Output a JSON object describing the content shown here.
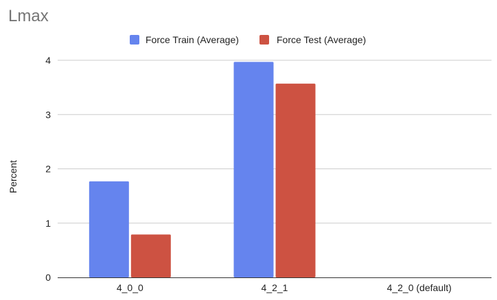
{
  "chart_data": {
    "type": "bar",
    "title": "Lmax",
    "xlabel": "",
    "ylabel": "Percent",
    "categories": [
      "4_0_0",
      "4_2_1",
      "4_2_0 (default)"
    ],
    "series": [
      {
        "name": "Force Train (Average)",
        "color": "#6584ee",
        "values": [
          1.77,
          3.97,
          null
        ]
      },
      {
        "name": "Force Test (Average)",
        "color": "#cd5242",
        "values": [
          0.79,
          3.57,
          null
        ]
      }
    ],
    "ylim": [
      0,
      4
    ],
    "yticks": [
      "0",
      "1",
      "2",
      "3",
      "4"
    ],
    "grid": true,
    "legend_position": "top"
  }
}
